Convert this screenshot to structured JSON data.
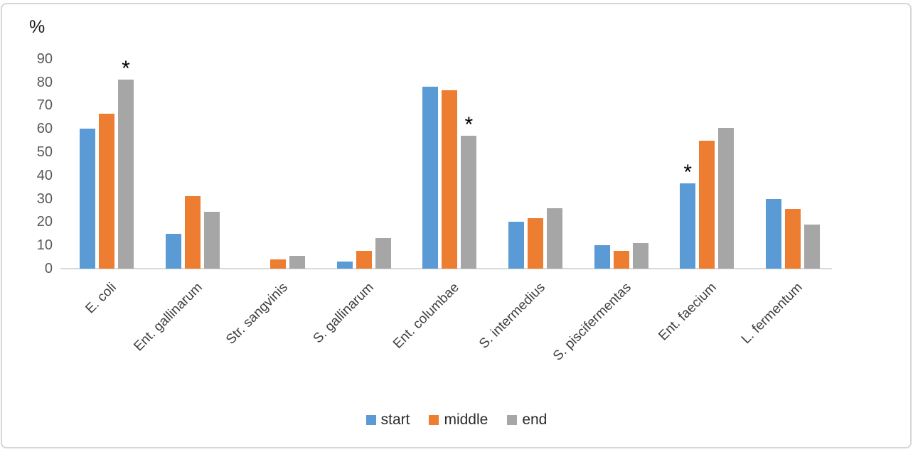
{
  "chart_data": {
    "type": "bar",
    "title": "",
    "xlabel": "",
    "ylabel": "%",
    "ylim": [
      0,
      90
    ],
    "yticks": [
      0,
      10,
      20,
      30,
      40,
      50,
      60,
      70,
      80,
      90
    ],
    "grid": false,
    "legend_position": "bottom",
    "categories": [
      "E. coli",
      "Ent. gallinarum",
      "Str. sangvinis",
      "S. gallinarum",
      "Ent. columbae",
      "S. intermedius",
      "S. piscifermentas",
      "Ent. faecium",
      "L. fermentum"
    ],
    "series": [
      {
        "name": "start",
        "color": "#5B9BD5",
        "values": [
          60,
          15,
          0,
          3,
          78,
          20,
          10,
          36.5,
          30
        ]
      },
      {
        "name": "middle",
        "color": "#ED7D31",
        "values": [
          66.5,
          31,
          4,
          7.5,
          76.5,
          21.5,
          7.5,
          55,
          25.5
        ]
      },
      {
        "name": "end",
        "color": "#A6A6A6",
        "values": [
          81,
          24.5,
          5.5,
          13,
          57,
          26,
          11,
          60.5,
          19
        ]
      }
    ],
    "annotations": [
      {
        "category": "E. coli",
        "series": "end",
        "symbol": "*"
      },
      {
        "category": "Ent. columbae",
        "series": "end",
        "symbol": "*"
      },
      {
        "category": "Ent. faecium",
        "series": "start",
        "symbol": "*"
      }
    ],
    "axis_line_color": "#D9D9D9",
    "tick_label_color": "#595959",
    "category_label_color": "#3F3F3F",
    "category_label_angle_deg": 45
  }
}
